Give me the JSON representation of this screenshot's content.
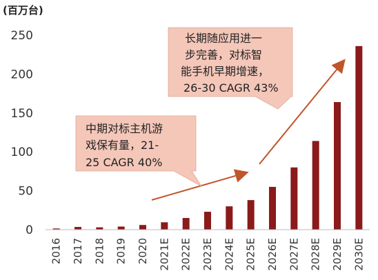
{
  "chart_data": {
    "type": "bar",
    "unit_label": "(百万台)",
    "categories": [
      "2016",
      "2017",
      "2018",
      "2019",
      "2020",
      "2021E",
      "2022E",
      "2023E",
      "2024E",
      "2025E",
      "2026E",
      "2027E",
      "2028E",
      "2029E",
      "2030E"
    ],
    "values": [
      1.5,
      3.5,
      3,
      4,
      6,
      9.5,
      15,
      23,
      30,
      38,
      55,
      80,
      114,
      164,
      236
    ],
    "ylim": [
      0,
      250
    ],
    "yticks": [
      0,
      50,
      100,
      150,
      200,
      250
    ],
    "bar_color": "#8B1A1A",
    "annotations": [
      {
        "lines": [
          "中期对标主机游",
          "戏保有量，21-",
          "25 CAGR 40%"
        ],
        "fill": "#F4C7B9"
      },
      {
        "lines": [
          "长期随应用进一",
          "步完善，对标智",
          "能手机早期增速，",
          "26-30 CAGR 43%"
        ],
        "fill": "#F4C7B9"
      }
    ],
    "arrow_color": "#C0552B",
    "grid": false,
    "legend": "none"
  }
}
